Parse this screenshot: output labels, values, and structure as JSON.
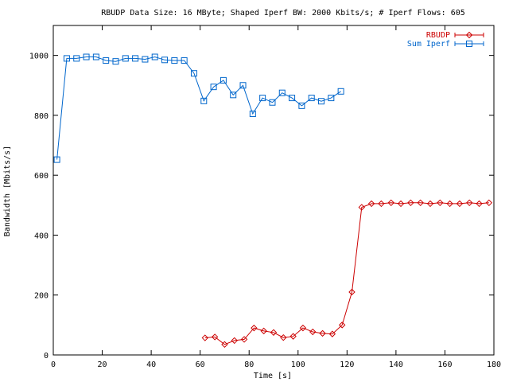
{
  "chart_data": {
    "type": "line",
    "title": "RBUDP Data Size: 16 MByte; Shaped Iperf BW: 2000 Kbits/s; # Iperf Flows: 605",
    "xlabel": "Time [s]",
    "ylabel": "Bandwidth [Mbits/s]",
    "xlim": [
      0,
      180
    ],
    "ylim": [
      0,
      1100
    ],
    "xticks": [
      0,
      20,
      40,
      60,
      80,
      100,
      120,
      140,
      160,
      180
    ],
    "yticks": [
      0,
      200,
      400,
      600,
      800,
      1000
    ],
    "grid": false,
    "legend_position": "top-right",
    "series": [
      {
        "name": "RBUDP",
        "color": "#cc0000",
        "marker": "diamond",
        "x": [
          62,
          66,
          70,
          74,
          78,
          82,
          86,
          90,
          94,
          98,
          102,
          106,
          110,
          114,
          118,
          122,
          126,
          130,
          134,
          138,
          142,
          146,
          150,
          154,
          158,
          162,
          166,
          170,
          174,
          178
        ],
        "y": [
          57,
          60,
          35,
          48,
          52,
          90,
          80,
          75,
          58,
          62,
          90,
          77,
          72,
          70,
          100,
          210,
          493,
          505,
          505,
          508,
          505,
          508,
          508,
          505,
          508,
          505,
          505,
          508,
          505,
          508
        ]
      },
      {
        "name": "Sum Iperf",
        "color": "#0066cc",
        "marker": "square",
        "x": [
          1.5,
          5.5,
          9.5,
          13.5,
          17.5,
          21.5,
          25.5,
          29.5,
          33.5,
          37.5,
          41.5,
          45.5,
          49.5,
          53.5,
          57.5,
          61.5,
          65.5,
          69.5,
          73.5,
          77.5,
          81.5,
          85.5,
          89.5,
          93.5,
          97.5,
          101.5,
          105.5,
          109.5,
          113.5,
          117.5
        ],
        "y": [
          652,
          990,
          990,
          995,
          995,
          983,
          980,
          990,
          990,
          987,
          995,
          985,
          983,
          983,
          940,
          848,
          895,
          917,
          868,
          900,
          805,
          858,
          843,
          875,
          858,
          832,
          858,
          847,
          858,
          880
        ]
      }
    ]
  }
}
